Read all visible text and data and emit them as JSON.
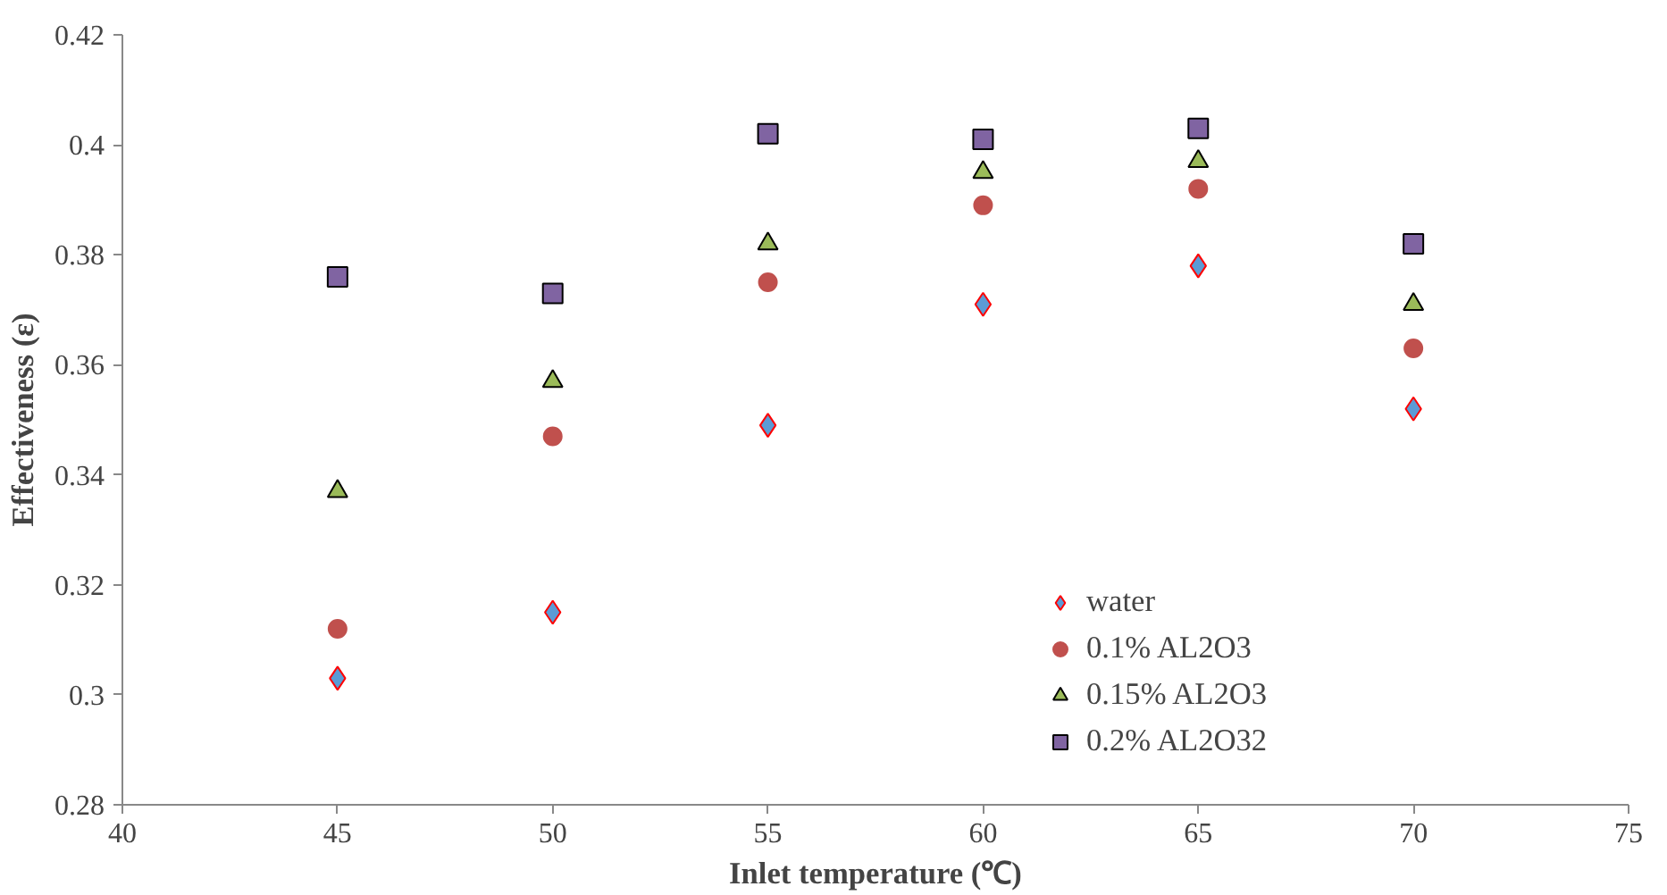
{
  "chart_data": {
    "type": "scatter",
    "xlabel": "Inlet temperature (℃)",
    "ylabel": "Effectiveness (ε)",
    "x": [
      45,
      50,
      55,
      60,
      65,
      70
    ],
    "series": [
      {
        "name": "water",
        "color": "#5b9bd5",
        "marker": "diamond",
        "values": [
          0.303,
          0.315,
          0.349,
          0.371,
          0.378,
          0.352
        ]
      },
      {
        "name": "0.1% AL2O3",
        "color": "#c0504d",
        "marker": "circle",
        "values": [
          0.312,
          0.347,
          0.375,
          0.389,
          0.392,
          0.363
        ]
      },
      {
        "name": "0.15% AL2O3",
        "color": "#9bbb59",
        "marker": "triangle",
        "values": [
          0.337,
          0.357,
          0.382,
          0.395,
          0.397,
          0.371
        ]
      },
      {
        "name": "0.2% AL2O32",
        "color": "#8064a2",
        "marker": "square",
        "values": [
          0.376,
          0.373,
          0.402,
          0.401,
          0.403,
          0.382
        ]
      }
    ],
    "xlim": [
      40,
      75
    ],
    "xticks": [
      40,
      45,
      50,
      55,
      60,
      65,
      70,
      75
    ],
    "ylim": [
      0.28,
      0.42
    ],
    "yticks": [
      0.28,
      0.3,
      0.32,
      0.34,
      0.36,
      0.38,
      0.4,
      0.42
    ],
    "grid": false,
    "legend": "right"
  }
}
